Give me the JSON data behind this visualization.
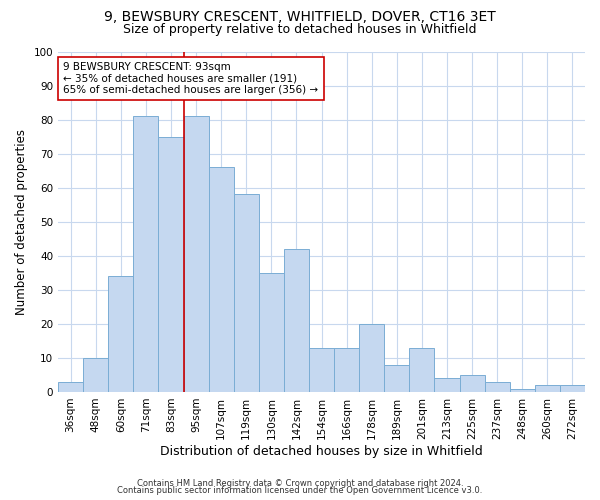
{
  "title1": "9, BEWSBURY CRESCENT, WHITFIELD, DOVER, CT16 3ET",
  "title2": "Size of property relative to detached houses in Whitfield",
  "xlabel": "Distribution of detached houses by size in Whitfield",
  "ylabel": "Number of detached properties",
  "categories": [
    "36sqm",
    "48sqm",
    "60sqm",
    "71sqm",
    "83sqm",
    "95sqm",
    "107sqm",
    "119sqm",
    "130sqm",
    "142sqm",
    "154sqm",
    "166sqm",
    "178sqm",
    "189sqm",
    "201sqm",
    "213sqm",
    "225sqm",
    "237sqm",
    "248sqm",
    "260sqm",
    "272sqm"
  ],
  "values": [
    3,
    10,
    34,
    81,
    75,
    81,
    66,
    58,
    35,
    42,
    13,
    13,
    20,
    8,
    13,
    4,
    5,
    3,
    1,
    2,
    2
  ],
  "bar_color": "#c5d8f0",
  "bar_edge_color": "#7aadd4",
  "vline_color": "#cc0000",
  "vline_index": 5,
  "annotation_text": "9 BEWSBURY CRESCENT: 93sqm\n← 35% of detached houses are smaller (191)\n65% of semi-detached houses are larger (356) →",
  "annotation_box_facecolor": "#ffffff",
  "annotation_box_edgecolor": "#cc0000",
  "ylim": [
    0,
    100
  ],
  "yticks": [
    0,
    10,
    20,
    30,
    40,
    50,
    60,
    70,
    80,
    90,
    100
  ],
  "bg_color": "#ffffff",
  "plot_bg_color": "#ffffff",
  "grid_color": "#c8d8ee",
  "footer1": "Contains HM Land Registry data © Crown copyright and database right 2024.",
  "footer2": "Contains public sector information licensed under the Open Government Licence v3.0.",
  "title1_fontsize": 10,
  "title2_fontsize": 9,
  "tick_fontsize": 7.5,
  "ylabel_fontsize": 8.5,
  "xlabel_fontsize": 9,
  "footer_fontsize": 6,
  "annot_fontsize": 7.5
}
